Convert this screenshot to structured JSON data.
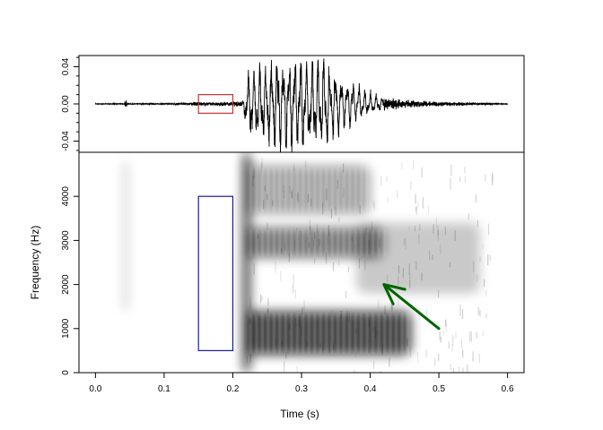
{
  "chart_data": [
    {
      "type": "line",
      "panel": "waveform",
      "title": "",
      "xlabel": "",
      "ylabel": "",
      "xlim": [
        -0.024,
        0.624
      ],
      "ylim": [
        -0.052,
        0.052
      ],
      "y_ticks": [
        -0.04,
        0.0,
        0.04
      ],
      "y_tick_labels": [
        "-0.04",
        "0.00",
        "0.04"
      ],
      "series": [
        {
          "color": "#000000",
          "envelope": {
            "t": [
              0.0,
              0.044,
              0.1,
              0.15,
              0.2,
              0.215,
              0.22,
              0.24,
              0.26,
              0.28,
              0.3,
              0.32,
              0.33,
              0.34,
              0.36,
              0.38,
              0.4,
              0.42,
              0.45,
              0.5,
              0.55,
              0.6
            ],
            "amp": [
              0.0003,
              0.0004,
              0.0004,
              0.0012,
              0.0015,
              0.002,
              0.028,
              0.036,
              0.04,
              0.041,
              0.041,
              0.04,
              0.042,
              0.036,
              0.024,
              0.017,
              0.01,
              0.005,
              0.003,
              0.0015,
              0.001,
              0.0004
            ]
          }
        }
      ],
      "annotations": [
        {
          "shape": "rect",
          "color": "#cc3333",
          "x": [
            0.15,
            0.2
          ],
          "y": [
            -0.01,
            0.01
          ]
        }
      ]
    },
    {
      "type": "heatmap",
      "panel": "spectrogram",
      "title": "",
      "xlabel": "Time (s)",
      "ylabel": "Frequency (Hz)",
      "xlim": [
        -0.024,
        0.624
      ],
      "ylim": [
        0,
        5000
      ],
      "x_ticks": [
        0.0,
        0.1,
        0.2,
        0.3,
        0.4,
        0.5,
        0.6
      ],
      "x_tick_labels": [
        "0.0",
        "0.1",
        "0.2",
        "0.3",
        "0.4",
        "0.5",
        "0.6"
      ],
      "y_ticks": [
        0,
        1000,
        2000,
        3000,
        4000
      ],
      "y_tick_labels": [
        "0",
        "1000",
        "2000",
        "3000",
        "4000"
      ],
      "colormap": "grayscale (white = low energy, black = high energy)",
      "energy_regions": [
        {
          "t": [
            0.22,
            0.46
          ],
          "f": [
            400,
            1400
          ],
          "level": 0.85
        },
        {
          "t": [
            0.22,
            0.42
          ],
          "f": [
            2600,
            3300
          ],
          "level": 0.6
        },
        {
          "t": [
            0.22,
            0.4
          ],
          "f": [
            3600,
            4700
          ],
          "level": 0.4
        },
        {
          "t": [
            0.38,
            0.56
          ],
          "f": [
            1800,
            3400
          ],
          "level": 0.25
        },
        {
          "t": [
            0.215,
            0.225
          ],
          "f": [
            0,
            5000
          ],
          "level": 1.0
        },
        {
          "t": [
            0.04,
            0.048
          ],
          "f": [
            1400,
            4800
          ],
          "level": 0.2
        }
      ],
      "annotations": [
        {
          "shape": "rect",
          "color": "#1a1aa8",
          "x": [
            0.15,
            0.2
          ],
          "y": [
            500,
            4000
          ]
        },
        {
          "shape": "arrow",
          "color": "#006400",
          "from": [
            0.5,
            1000
          ],
          "to": [
            0.42,
            2000
          ]
        }
      ]
    }
  ]
}
